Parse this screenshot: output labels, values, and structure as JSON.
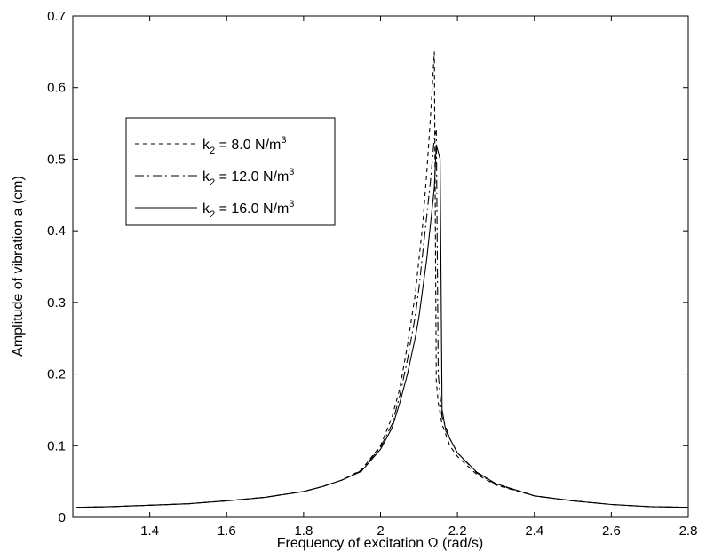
{
  "chart_data": {
    "type": "line",
    "title": "",
    "xlabel": "Frequency of excitation Ω (rad/s)",
    "ylabel": "Amplitude of vibration a (cm)",
    "xlim": [
      1.2,
      2.8
    ],
    "ylim": [
      0,
      0.7
    ],
    "xticks": [
      1.4,
      1.6,
      1.8,
      2,
      2.2,
      2.4,
      2.6,
      2.8
    ],
    "xtick_labels": [
      "1.4",
      "1.6",
      "1.8",
      "2",
      "2.2",
      "2.4",
      "2.6",
      "2.8"
    ],
    "yticks": [
      0,
      0.1,
      0.2,
      0.3,
      0.4,
      0.5,
      0.6,
      0.7
    ],
    "ytick_labels": [
      "0",
      "0.1",
      "0.2",
      "0.3",
      "0.4",
      "0.5",
      "0.6",
      "0.7"
    ],
    "grid": false,
    "legend_position": "upper-left",
    "series": [
      {
        "name": "k2 = 8.0 N/m3",
        "legend": {
          "base": "k",
          "sub": "2",
          "mid": " = 8.0 N/m",
          "sup": "3"
        },
        "style": "dashed",
        "x": [
          1.21,
          1.3,
          1.4,
          1.5,
          1.6,
          1.7,
          1.8,
          1.85,
          1.9,
          1.95,
          2.0,
          2.03,
          2.05,
          2.07,
          2.09,
          2.1,
          2.11,
          2.12,
          2.13,
          2.14,
          2.145,
          2.15,
          2.16,
          2.18,
          2.2,
          2.25,
          2.3,
          2.4,
          2.5,
          2.6,
          2.7,
          2.8
        ],
        "y": [
          0.014,
          0.015,
          0.017,
          0.019,
          0.023,
          0.028,
          0.036,
          0.043,
          0.052,
          0.066,
          0.1,
          0.14,
          0.18,
          0.24,
          0.31,
          0.36,
          0.41,
          0.48,
          0.56,
          0.65,
          0.19,
          0.16,
          0.13,
          0.1,
          0.085,
          0.06,
          0.045,
          0.03,
          0.023,
          0.018,
          0.015,
          0.014
        ]
      },
      {
        "name": "k2 = 12.0 N/m3",
        "legend": {
          "base": "k",
          "sub": "2",
          "mid": " = 12.0 N/m",
          "sup": "3"
        },
        "style": "dashdot",
        "x": [
          1.21,
          1.3,
          1.4,
          1.5,
          1.6,
          1.7,
          1.8,
          1.85,
          1.9,
          1.95,
          2.0,
          2.03,
          2.05,
          2.07,
          2.09,
          2.1,
          2.11,
          2.12,
          2.13,
          2.14,
          2.145,
          2.15,
          2.155,
          2.16,
          2.18,
          2.2,
          2.25,
          2.3,
          2.4,
          2.5,
          2.6,
          2.7,
          2.8
        ],
        "y": [
          0.014,
          0.015,
          0.017,
          0.019,
          0.023,
          0.028,
          0.036,
          0.043,
          0.052,
          0.065,
          0.098,
          0.13,
          0.17,
          0.22,
          0.28,
          0.32,
          0.37,
          0.42,
          0.47,
          0.53,
          0.54,
          0.2,
          0.17,
          0.14,
          0.11,
          0.09,
          0.062,
          0.046,
          0.03,
          0.023,
          0.018,
          0.015,
          0.014
        ]
      },
      {
        "name": "k2 = 16.0 N/m3",
        "legend": {
          "base": "k",
          "sub": "2",
          "mid": " = 16.0 N/m",
          "sup": "3"
        },
        "style": "solid",
        "x": [
          1.21,
          1.3,
          1.4,
          1.5,
          1.6,
          1.7,
          1.8,
          1.85,
          1.9,
          1.95,
          2.0,
          2.03,
          2.05,
          2.07,
          2.09,
          2.1,
          2.11,
          2.12,
          2.13,
          2.14,
          2.145,
          2.15,
          2.155,
          2.16,
          2.17,
          2.18,
          2.2,
          2.25,
          2.3,
          2.4,
          2.5,
          2.6,
          2.7,
          2.8
        ],
        "y": [
          0.014,
          0.015,
          0.017,
          0.019,
          0.023,
          0.028,
          0.036,
          0.043,
          0.052,
          0.064,
          0.095,
          0.125,
          0.16,
          0.2,
          0.25,
          0.28,
          0.32,
          0.36,
          0.41,
          0.46,
          0.52,
          0.51,
          0.5,
          0.15,
          0.12,
          0.11,
          0.09,
          0.063,
          0.047,
          0.03,
          0.023,
          0.018,
          0.015,
          0.014
        ]
      }
    ]
  }
}
